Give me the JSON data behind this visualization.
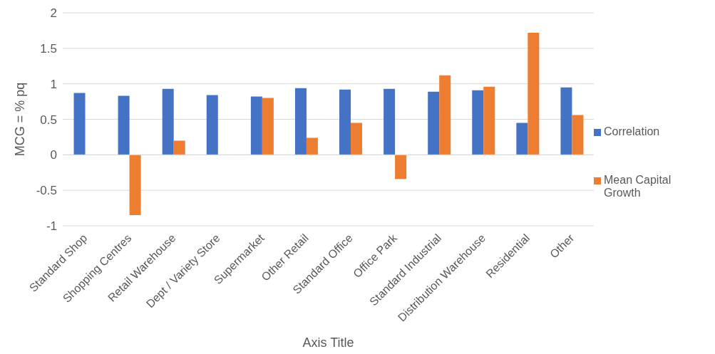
{
  "chart_data": {
    "type": "bar",
    "xlabel": "Axis Title",
    "ylabel": "MCG = % pq",
    "categories": [
      "Standard Shop",
      "Shopping Centres",
      "Retail Warehouse",
      "Dept / Variety Store",
      "Supermarket",
      "Other Retail",
      "Standard Office",
      "Office Park",
      "Standard Industrial",
      "Distribution Warehouse",
      "Residential",
      "Other"
    ],
    "series": [
      {
        "name": "Correlation",
        "color": "#4472c4",
        "values": [
          0.87,
          0.83,
          0.93,
          0.84,
          0.82,
          0.94,
          0.92,
          0.93,
          0.89,
          0.91,
          0.45,
          0.95
        ]
      },
      {
        "name": "Mean Capital Growth",
        "color": "#ed7d31",
        "values": [
          null,
          -0.85,
          0.2,
          null,
          0.8,
          0.24,
          0.45,
          -0.34,
          1.12,
          0.96,
          1.72,
          0.56
        ]
      }
    ],
    "ylim": [
      -1,
      2
    ],
    "yticks": [
      -1,
      -0.5,
      0,
      0.5,
      1,
      1.5,
      2
    ],
    "grid": "y",
    "legend": "right"
  }
}
